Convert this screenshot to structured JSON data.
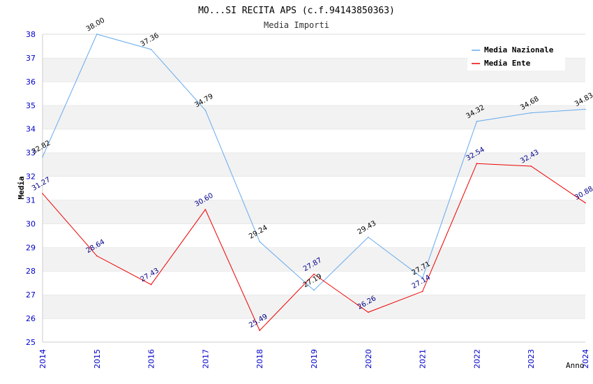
{
  "chart_data": {
    "type": "line",
    "title": "MO...SI RECITA APS (c.f.94143850363)",
    "subtitle": "Media Importi",
    "xlabel": "Anno",
    "ylabel": "Media",
    "x": [
      "2014",
      "2015",
      "2016",
      "2017",
      "2018",
      "2019",
      "2020",
      "2021",
      "2022",
      "2023",
      "2024"
    ],
    "ylim": [
      25,
      38
    ],
    "yticks": [
      "25",
      "26",
      "27",
      "28",
      "29",
      "30",
      "31",
      "32",
      "33",
      "34",
      "35",
      "36",
      "37",
      "38"
    ],
    "grid": "horizontal-bands",
    "legend_position": "top-right",
    "series": [
      {
        "name": "Media Nazionale",
        "color": "#66aaee",
        "label_color": "#000000",
        "values": [
          32.82,
          38.0,
          37.36,
          34.79,
          29.24,
          27.19,
          29.43,
          27.71,
          34.32,
          34.68,
          34.83
        ],
        "labels": [
          "32.82",
          "38.00",
          "37.36",
          "34.79",
          "29.24",
          "27.19",
          "29.43",
          "27.71",
          "34.32",
          "34.68",
          "34.83"
        ]
      },
      {
        "name": "Media Ente",
        "color": "#ee0000",
        "label_color": "#000088",
        "values": [
          31.27,
          28.64,
          27.43,
          30.6,
          25.49,
          27.87,
          26.26,
          27.14,
          32.54,
          32.43,
          30.88
        ],
        "labels": [
          "31.27",
          "28.64",
          "27.43",
          "30.60",
          "25.49",
          "27.87",
          "26.26",
          "27.14",
          "32.54",
          "32.43",
          "30.88"
        ]
      }
    ]
  },
  "colors": {
    "band": "#f2f2f2",
    "grid_line": "#dddddd",
    "tick_label": "#0000cc",
    "title": "#000000",
    "subtitle": "#333333"
  }
}
